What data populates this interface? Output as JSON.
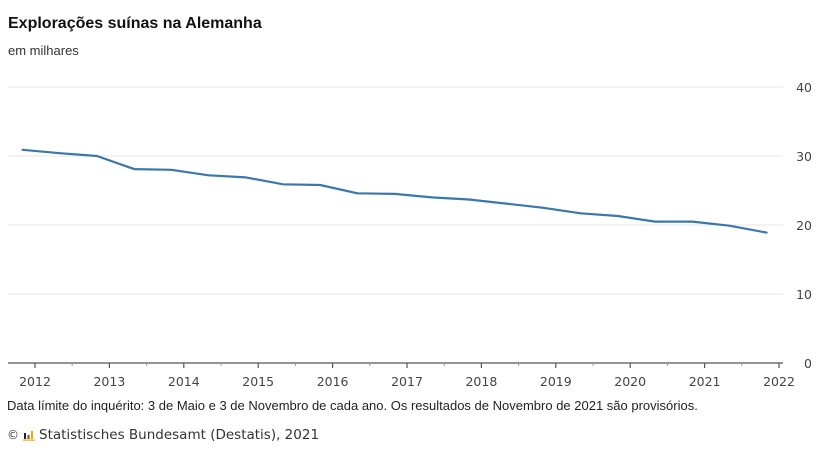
{
  "title": "Explorações suínas na Alemanha",
  "subtitle": "em milhares",
  "note": "Data límite do inquérito: 3 de Maio e 3 de Novembro de cada ano. Os resultados de Novembro de 2021 são provisórios.",
  "source": {
    "copyright_symbol": "©",
    "logo_icon": "destatis-logo-icon",
    "text": "Statistisches Bundesamt (Destatis), 2021"
  },
  "colors": {
    "line": "#3a77aa",
    "grid": "#e6e6e6",
    "axis": "#555555"
  },
  "chart_data": {
    "type": "line",
    "title": "Explorações suínas na Alemanha",
    "subtitle": "em milhares",
    "xlabel": "",
    "ylabel": "em milhares",
    "x_ticks": [
      "2012",
      "2013",
      "2014",
      "2015",
      "2016",
      "2017",
      "2018",
      "2019",
      "2020",
      "2021",
      "2022"
    ],
    "y_ticks": [
      0,
      10,
      20,
      30,
      40
    ],
    "ylim": [
      0,
      40
    ],
    "xlim": [
      2011.8,
      2022.05
    ],
    "grid": true,
    "y_axis_position": "right",
    "legend": "none",
    "series": [
      {
        "name": "Explorações suínas",
        "x": [
          "Nov 2011",
          "May 2012",
          "Nov 2012",
          "May 2013",
          "Nov 2013",
          "May 2014",
          "Nov 2014",
          "May 2015",
          "Nov 2015",
          "May 2016",
          "Nov 2016",
          "May 2017",
          "Nov 2017",
          "May 2018",
          "Nov 2018",
          "May 2019",
          "Nov 2019",
          "May 2020",
          "Nov 2020",
          "May 2021",
          "Nov 2021"
        ],
        "x_numeric": [
          2011.833,
          2012.333,
          2012.833,
          2013.333,
          2013.833,
          2014.333,
          2014.833,
          2015.333,
          2015.833,
          2016.333,
          2016.833,
          2017.333,
          2017.833,
          2018.333,
          2018.833,
          2019.333,
          2019.833,
          2020.333,
          2020.833,
          2021.333,
          2021.833
        ],
        "values": [
          30.9,
          30.4,
          30.0,
          28.1,
          28.0,
          27.2,
          26.9,
          25.9,
          25.8,
          24.6,
          24.5,
          24.0,
          23.7,
          23.1,
          22.5,
          21.7,
          21.3,
          20.5,
          20.5,
          19.9,
          18.9
        ]
      }
    ]
  }
}
